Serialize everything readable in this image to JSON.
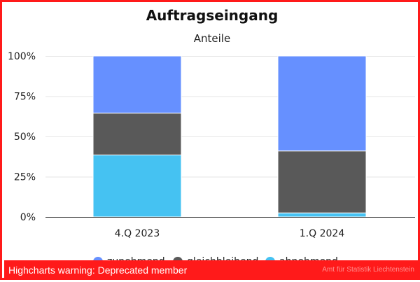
{
  "chart_data": {
    "type": "bar",
    "stacked": true,
    "percent": true,
    "title": "Auftragseingang",
    "subtitle": "Anteile",
    "categories": [
      "4.Q 2023",
      "1.Q 2024"
    ],
    "series": [
      {
        "name": "zunehmend",
        "color": "#6690ff",
        "values": [
          35.5,
          59.0
        ]
      },
      {
        "name": "gleichbleibend",
        "color": "#595959",
        "values": [
          26.0,
          38.5
        ]
      },
      {
        "name": "abnehmend",
        "color": "#45c2f2",
        "values": [
          38.5,
          2.5
        ]
      }
    ],
    "yticks": [
      "0%",
      "25%",
      "50%",
      "75%",
      "100%"
    ],
    "ylim": [
      0,
      100
    ],
    "grid": true,
    "legend_position": "bottom"
  },
  "warning": {
    "text": "Highcharts warning: Deprecated member",
    "credit": "Amt für Statistik Liechtenstein"
  }
}
